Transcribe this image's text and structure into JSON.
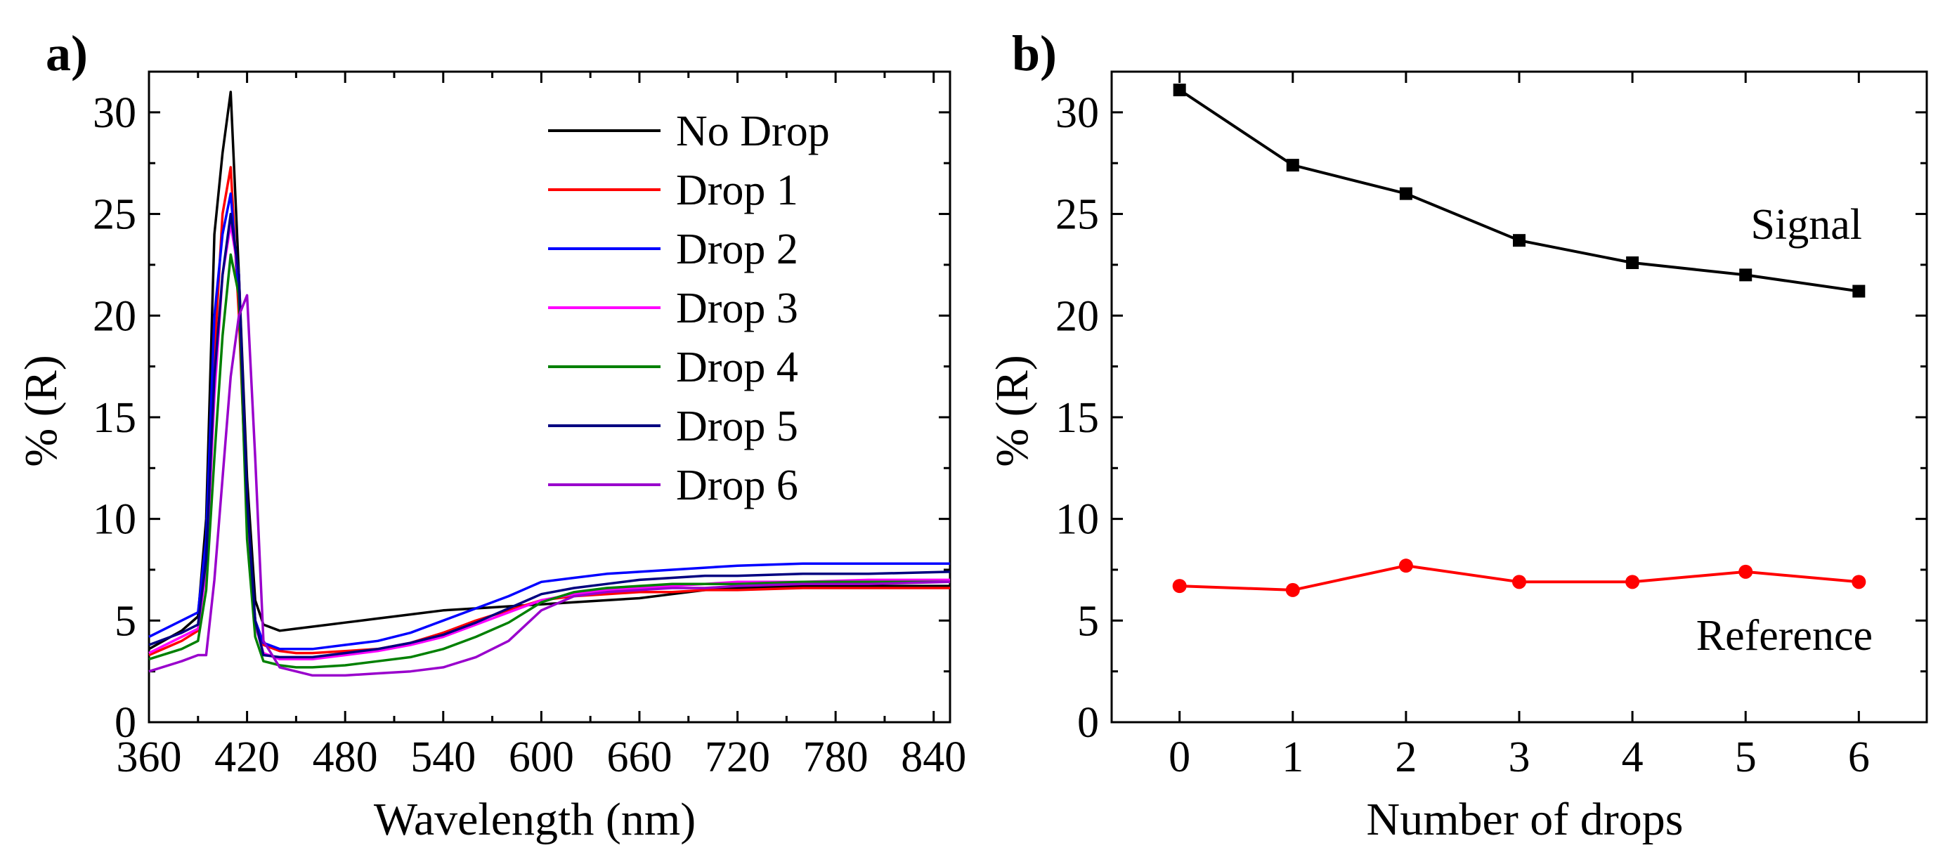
{
  "chart_data": [
    {
      "panel_label": "a)",
      "type": "line",
      "xlabel": "Wavelength (nm)",
      "ylabel": "% (R)",
      "xlim": [
        360,
        850
      ],
      "ylim": [
        0,
        32
      ],
      "xticks": [
        360,
        420,
        480,
        540,
        600,
        660,
        720,
        780,
        840
      ],
      "yticks": [
        0,
        5,
        10,
        15,
        20,
        25,
        30
      ],
      "x": [
        360,
        380,
        390,
        395,
        400,
        405,
        410,
        415,
        420,
        425,
        430,
        440,
        450,
        460,
        480,
        500,
        520,
        540,
        560,
        580,
        600,
        620,
        640,
        660,
        680,
        700,
        720,
        760,
        800,
        850
      ],
      "legend_position": "top-right",
      "series": [
        {
          "name": "No Drop",
          "color": "#000000",
          "values": [
            3.6,
            4.5,
            5.2,
            10,
            24,
            28,
            31,
            22,
            12,
            6,
            4.8,
            4.5,
            4.6,
            4.7,
            4.9,
            5.1,
            5.3,
            5.5,
            5.6,
            5.7,
            5.8,
            5.9,
            6.0,
            6.1,
            6.3,
            6.5,
            6.6,
            6.7,
            6.7,
            6.7
          ]
        },
        {
          "name": "Drop 1",
          "color": "#ff0000",
          "values": [
            3.3,
            4.0,
            4.5,
            8,
            18,
            25,
            27.3,
            20,
            10,
            5,
            3.8,
            3.5,
            3.4,
            3.4,
            3.5,
            3.6,
            3.9,
            4.4,
            5.0,
            5.5,
            6.0,
            6.2,
            6.3,
            6.4,
            6.4,
            6.5,
            6.5,
            6.6,
            6.6,
            6.6
          ]
        },
        {
          "name": "Drop 2",
          "color": "#0000ff",
          "values": [
            4.2,
            5.0,
            5.4,
            9,
            20,
            24,
            26,
            21,
            10,
            5,
            3.9,
            3.6,
            3.6,
            3.6,
            3.8,
            4.0,
            4.4,
            5.0,
            5.6,
            6.2,
            6.9,
            7.1,
            7.3,
            7.4,
            7.5,
            7.6,
            7.7,
            7.8,
            7.8,
            7.8
          ]
        },
        {
          "name": "Drop 3",
          "color": "#ff00ff",
          "values": [
            3.4,
            4.2,
            4.6,
            7.5,
            16,
            22,
            24.5,
            22,
            10,
            4.8,
            3.4,
            3.1,
            3.1,
            3.1,
            3.3,
            3.5,
            3.8,
            4.2,
            4.8,
            5.4,
            6.0,
            6.3,
            6.5,
            6.6,
            6.7,
            6.8,
            6.9,
            6.9,
            7.0,
            7.0
          ]
        },
        {
          "name": "Drop 4",
          "color": "#008000",
          "values": [
            3.1,
            3.6,
            4.0,
            6.5,
            13,
            19,
            23,
            21,
            9,
            4.2,
            3.0,
            2.8,
            2.7,
            2.7,
            2.8,
            3.0,
            3.2,
            3.6,
            4.2,
            4.9,
            5.9,
            6.4,
            6.6,
            6.7,
            6.8,
            6.8,
            6.8,
            6.9,
            6.9,
            6.9
          ]
        },
        {
          "name": "Drop 5",
          "color": "#000080",
          "values": [
            3.8,
            4.4,
            4.8,
            8,
            17,
            22,
            25,
            22,
            11,
            5,
            3.3,
            3.2,
            3.2,
            3.2,
            3.4,
            3.6,
            3.9,
            4.3,
            4.9,
            5.6,
            6.3,
            6.6,
            6.8,
            7.0,
            7.1,
            7.2,
            7.2,
            7.3,
            7.3,
            7.4
          ]
        },
        {
          "name": "Drop 6",
          "color": "#9900cc",
          "values": [
            2.5,
            3.0,
            3.3,
            3.3,
            7,
            12,
            17,
            20,
            21,
            13,
            4.0,
            2.7,
            2.5,
            2.3,
            2.3,
            2.4,
            2.5,
            2.7,
            3.2,
            4.0,
            5.5,
            6.2,
            6.4,
            6.5,
            6.6,
            6.6,
            6.7,
            6.8,
            6.8,
            6.9
          ]
        }
      ]
    },
    {
      "panel_label": "b)",
      "type": "line",
      "xlabel": "Number of drops",
      "ylabel": "% (R)",
      "xlim": [
        -0.6,
        6.6
      ],
      "ylim": [
        0,
        32
      ],
      "xticks": [
        0,
        1,
        2,
        3,
        4,
        5,
        6
      ],
      "yticks": [
        0,
        5,
        10,
        15,
        20,
        25,
        30
      ],
      "x": [
        0,
        1,
        2,
        3,
        4,
        5,
        6
      ],
      "series": [
        {
          "name": "Signal",
          "color": "#000000",
          "marker": "square",
          "values": [
            31.1,
            27.4,
            26.0,
            23.7,
            22.6,
            22.0,
            21.2
          ]
        },
        {
          "name": "Reference",
          "color": "#ff0000",
          "marker": "circle",
          "values": [
            6.7,
            6.5,
            7.7,
            6.9,
            6.9,
            7.4,
            6.9
          ]
        }
      ]
    }
  ]
}
